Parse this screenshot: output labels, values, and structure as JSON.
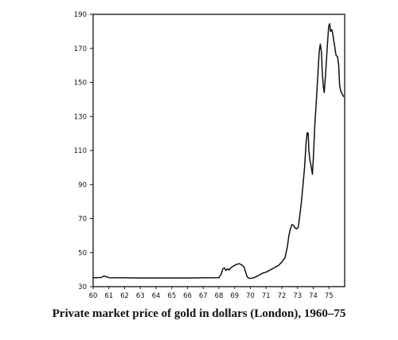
{
  "chart_data": {
    "type": "line",
    "title": "Private market price of gold in dollars (London), 1960–75",
    "xlabel": "",
    "ylabel": "",
    "xlim": [
      60,
      76
    ],
    "ylim": [
      30,
      190
    ],
    "x_ticks": [
      "60",
      "61",
      "62",
      "63",
      "64",
      "65",
      "66",
      "67",
      "68",
      "69",
      "70",
      "71",
      "72",
      "73",
      "74",
      "75"
    ],
    "y_ticks": [
      "30",
      "50",
      "70",
      "90",
      "110",
      "130",
      "150",
      "170",
      "190"
    ],
    "grid": false,
    "series": [
      {
        "name": "",
        "points": [
          [
            60.0,
            35.2
          ],
          [
            60.5,
            35.4
          ],
          [
            60.7,
            36.2
          ],
          [
            60.85,
            35.8
          ],
          [
            61.0,
            35.3
          ],
          [
            62.0,
            35.2
          ],
          [
            63.0,
            35.1
          ],
          [
            64.0,
            35.1
          ],
          [
            65.0,
            35.1
          ],
          [
            66.0,
            35.1
          ],
          [
            67.0,
            35.2
          ],
          [
            68.0,
            35.3
          ],
          [
            68.15,
            37.5
          ],
          [
            68.25,
            40.5
          ],
          [
            68.35,
            41.0
          ],
          [
            68.45,
            39.5
          ],
          [
            68.55,
            40.5
          ],
          [
            68.65,
            39.8
          ],
          [
            68.75,
            41.0
          ],
          [
            68.9,
            42.0
          ],
          [
            69.1,
            43.0
          ],
          [
            69.3,
            43.5
          ],
          [
            69.5,
            42.5
          ],
          [
            69.6,
            41.5
          ],
          [
            69.7,
            38.5
          ],
          [
            69.8,
            35.8
          ],
          [
            69.9,
            35.0
          ],
          [
            70.0,
            34.8
          ],
          [
            70.2,
            35.2
          ],
          [
            70.4,
            36.0
          ],
          [
            70.6,
            37.0
          ],
          [
            70.8,
            38.0
          ],
          [
            71.0,
            38.5
          ],
          [
            71.2,
            39.5
          ],
          [
            71.4,
            40.5
          ],
          [
            71.6,
            41.5
          ],
          [
            71.8,
            42.5
          ],
          [
            72.0,
            44.5
          ],
          [
            72.2,
            47.0
          ],
          [
            72.35,
            53.0
          ],
          [
            72.45,
            60.0
          ],
          [
            72.55,
            64.0
          ],
          [
            72.65,
            66.5
          ],
          [
            72.75,
            66.0
          ],
          [
            72.85,
            64.5
          ],
          [
            72.95,
            64.0
          ],
          [
            73.05,
            65.0
          ],
          [
            73.15,
            72.0
          ],
          [
            73.25,
            80.0
          ],
          [
            73.35,
            90.0
          ],
          [
            73.45,
            100.0
          ],
          [
            73.55,
            115.0
          ],
          [
            73.62,
            120.5
          ],
          [
            73.68,
            120.0
          ],
          [
            73.72,
            110.0
          ],
          [
            73.8,
            104.0
          ],
          [
            73.88,
            100.0
          ],
          [
            73.95,
            96.0
          ],
          [
            74.02,
            108.0
          ],
          [
            74.1,
            125.0
          ],
          [
            74.2,
            140.0
          ],
          [
            74.3,
            155.0
          ],
          [
            74.38,
            168.0
          ],
          [
            74.45,
            172.5
          ],
          [
            74.52,
            168.0
          ],
          [
            74.58,
            155.0
          ],
          [
            74.65,
            147.0
          ],
          [
            74.7,
            144.0
          ],
          [
            74.75,
            150.0
          ],
          [
            74.82,
            160.0
          ],
          [
            74.9,
            172.0
          ],
          [
            74.98,
            183.0
          ],
          [
            75.05,
            184.5
          ],
          [
            75.1,
            180.0
          ],
          [
            75.18,
            181.0
          ],
          [
            75.25,
            178.0
          ],
          [
            75.35,
            172.0
          ],
          [
            75.45,
            166.0
          ],
          [
            75.55,
            165.0
          ],
          [
            75.62,
            160.0
          ],
          [
            75.68,
            148.0
          ],
          [
            75.75,
            145.0
          ],
          [
            75.85,
            143.0
          ],
          [
            75.95,
            141.5
          ]
        ]
      }
    ]
  }
}
